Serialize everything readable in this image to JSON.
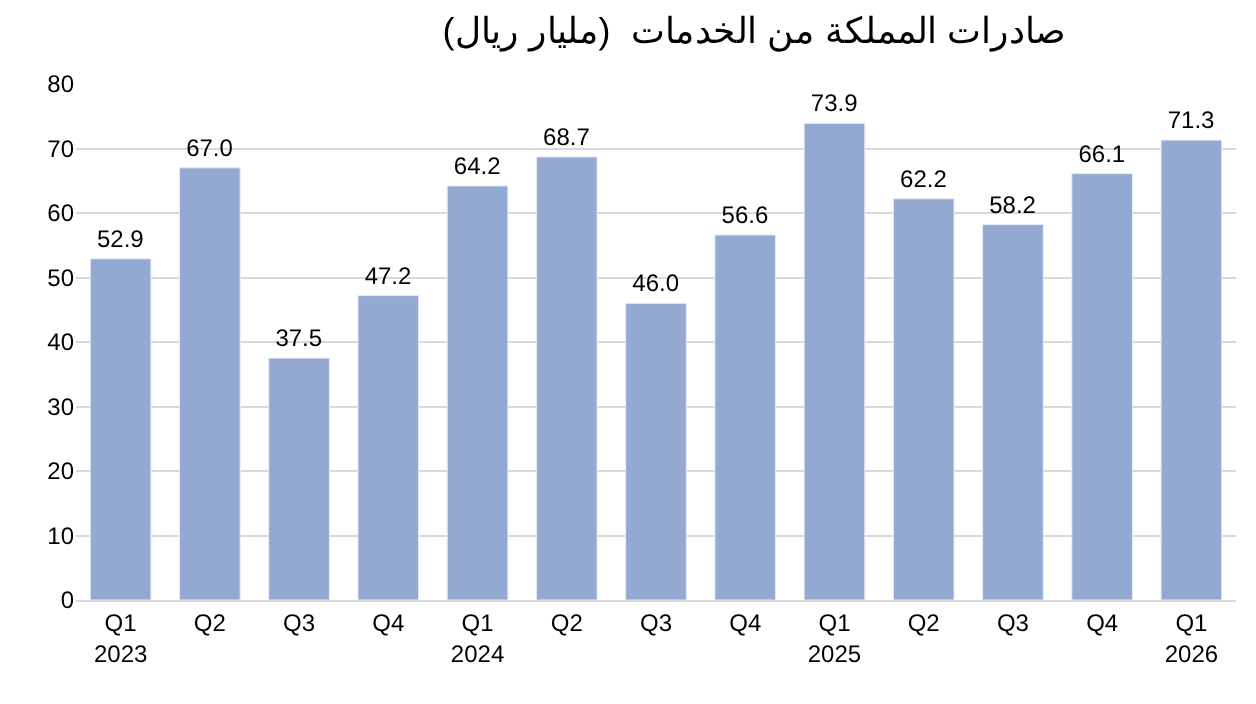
{
  "chart_data": {
    "type": "bar",
    "title": "صادرات المملكة من الخدمات  (مليار ريال)",
    "categories": [
      "Q1\n2023",
      "Q2",
      "Q3",
      "Q4",
      "Q1\n2024",
      "Q2",
      "Q3",
      "Q4",
      "Q1\n2025",
      "Q2",
      "Q3",
      "Q4",
      "Q1\n2026"
    ],
    "values": [
      52.9,
      67.0,
      37.5,
      47.2,
      64.2,
      68.7,
      46.0,
      56.6,
      73.9,
      62.2,
      58.2,
      66.1,
      71.3
    ],
    "value_labels": [
      "52.9",
      "67.0",
      "37.5",
      "47.2",
      "64.2",
      "68.7",
      "46.0",
      "56.6",
      "73.9",
      "62.2",
      "58.2",
      "66.1",
      "71.3"
    ],
    "color": "#94a9d1",
    "ylim": [
      0,
      80
    ],
    "yticks": [
      0,
      10,
      20,
      30,
      40,
      50,
      60,
      70,
      80
    ],
    "grid": "y",
    "legend": false
  }
}
